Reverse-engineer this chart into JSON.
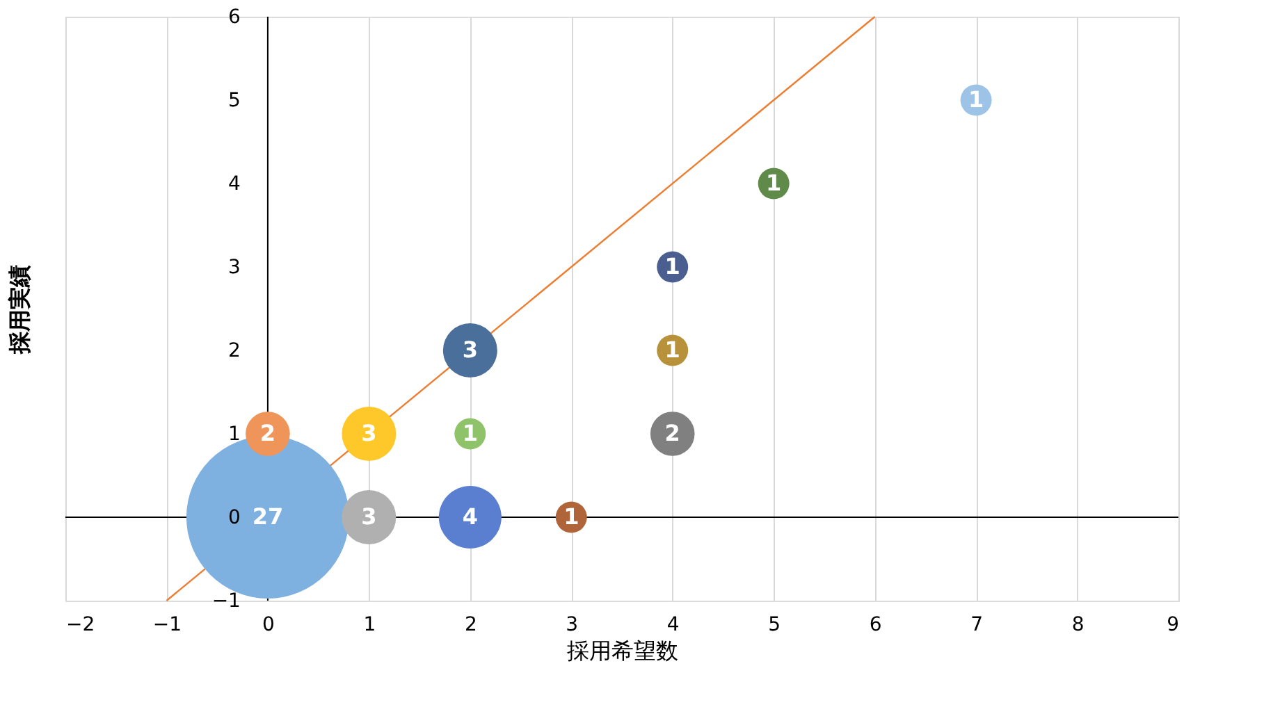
{
  "chart_data": {
    "type": "bubble",
    "xlabel": "採用希望数",
    "ylabel": "採用実績",
    "xlim": [
      -2,
      9
    ],
    "xticks": [
      -2,
      -1,
      0,
      1,
      2,
      3,
      4,
      5,
      6,
      7,
      8,
      9
    ],
    "ylim": [
      -1,
      6
    ],
    "yticks": [
      -1,
      0,
      1,
      2,
      3,
      4,
      5,
      6
    ],
    "grid": "x",
    "legend": false,
    "series": [
      {
        "type": "bubble",
        "x": [
          0,
          0,
          1,
          1,
          2,
          2,
          2,
          3,
          4,
          4,
          4,
          5,
          7
        ],
        "values": [
          0,
          1,
          1,
          0,
          2,
          1,
          0,
          0,
          3,
          2,
          1,
          4,
          5
        ],
        "sizes": [
          1,
          0.074,
          0.111,
          0.111,
          0.111,
          0.037,
          0.148,
          0.037,
          0.037,
          0.037,
          0.074,
          0.037,
          0.037
        ],
        "colors": [
          "#7eb0e0",
          "#f0955a",
          "#ffc82a",
          "#b0b0b0",
          "#4a6f9a",
          "#8fc36a",
          "#5b7fd0",
          "#b0643a",
          "#4a5f90",
          "#b8923a",
          "#808080",
          "#5f8a4a",
          "#9dc3e6"
        ]
      },
      {
        "type": "line",
        "x": [
          -1,
          6
        ],
        "values": [
          -1,
          6
        ],
        "color": "#ed7d31"
      }
    ],
    "annotations": [
      {
        "text": "27",
        "x": 0,
        "y": 0
      },
      {
        "text": "2",
        "x": 0,
        "y": 1
      },
      {
        "text": "3",
        "x": 1,
        "y": 1
      },
      {
        "text": "3",
        "x": 1,
        "y": 0
      },
      {
        "text": "3",
        "x": 2,
        "y": 2
      },
      {
        "text": "1",
        "x": 2,
        "y": 1
      },
      {
        "text": "4",
        "x": 2,
        "y": 0
      },
      {
        "text": "1",
        "x": 3,
        "y": 0
      },
      {
        "text": "1",
        "x": 4,
        "y": 3
      },
      {
        "text": "1",
        "x": 4,
        "y": 2
      },
      {
        "text": "2",
        "x": 4,
        "y": 1
      },
      {
        "text": "1",
        "x": 5,
        "y": 4
      },
      {
        "text": "1",
        "x": 7,
        "y": 5
      }
    ]
  }
}
